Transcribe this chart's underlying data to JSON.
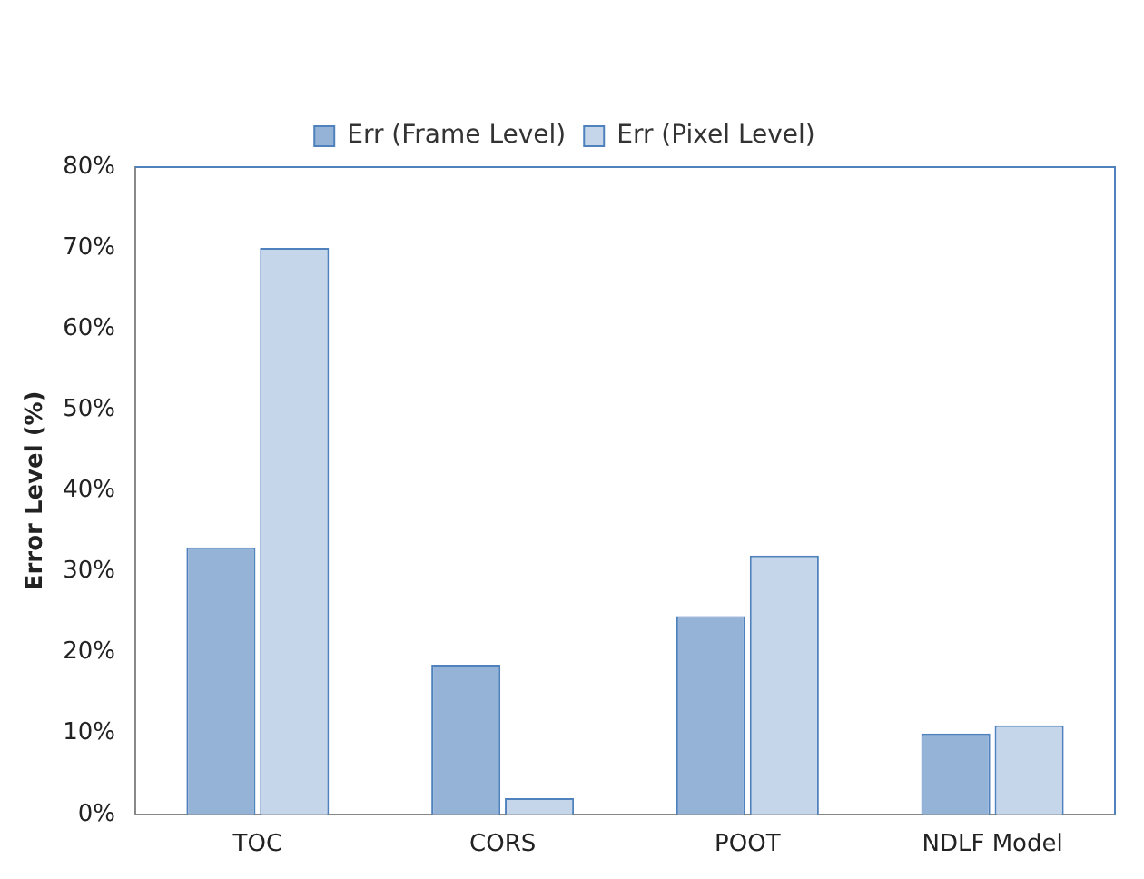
{
  "chart_data": {
    "type": "bar",
    "ylabel": "Error Level (%)",
    "categories": [
      "TOC",
      "CORS",
      "POOT",
      "NDLF Model"
    ],
    "series": [
      {
        "name": "Err (Frame Level)",
        "color": "#95b3d7",
        "values": [
          33,
          18.5,
          24.5,
          10
        ]
      },
      {
        "name": "Err (Pixel Level)",
        "color": "#c5d5ea",
        "values": [
          70,
          2,
          32,
          11
        ]
      }
    ],
    "ylim": [
      0,
      80
    ],
    "yticks": [
      {
        "value": 0,
        "label": "0%"
      },
      {
        "value": 10,
        "label": "10%"
      },
      {
        "value": 20,
        "label": "20%"
      },
      {
        "value": 30,
        "label": "30%"
      },
      {
        "value": 40,
        "label": "40%"
      },
      {
        "value": 50,
        "label": "50%"
      },
      {
        "value": 60,
        "label": "60%"
      },
      {
        "value": 70,
        "label": "70%"
      },
      {
        "value": 80,
        "label": "80%"
      }
    ],
    "grid": false,
    "legend": "top"
  }
}
